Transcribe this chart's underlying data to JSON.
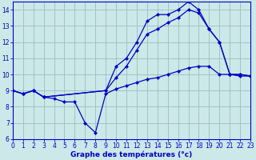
{
  "xlabel": "Graphe des températures (°c)",
  "xlim": [
    0,
    23
  ],
  "ylim": [
    6,
    14.5
  ],
  "yticks": [
    6,
    7,
    8,
    9,
    10,
    11,
    12,
    13,
    14
  ],
  "xticks": [
    0,
    1,
    2,
    3,
    4,
    5,
    6,
    7,
    8,
    9,
    10,
    11,
    12,
    13,
    14,
    15,
    16,
    17,
    18,
    19,
    20,
    21,
    22,
    23
  ],
  "bg_color": "#cce8e8",
  "line_color": "#0000cc",
  "grid_color": "#9bbfbf",
  "curve1_x": [
    0,
    1,
    2,
    3,
    4,
    5,
    6,
    7,
    8,
    9,
    10,
    11,
    12,
    13,
    14,
    15,
    16,
    17,
    18,
    19,
    20,
    21,
    22,
    23
  ],
  "curve1_y": [
    9.0,
    8.8,
    9.0,
    8.6,
    8.5,
    8.3,
    8.3,
    7.0,
    6.4,
    8.8,
    9.1,
    9.3,
    9.5,
    9.7,
    9.8,
    10.0,
    10.2,
    10.4,
    10.5,
    10.5,
    10.0,
    10.0,
    9.9,
    9.9
  ],
  "curve2_x": [
    0,
    1,
    2,
    3,
    9,
    10,
    11,
    12,
    13,
    14,
    15,
    16,
    17,
    18,
    19,
    20,
    21,
    22,
    23
  ],
  "curve2_y": [
    9.0,
    8.8,
    9.0,
    8.6,
    9.0,
    10.5,
    11.0,
    12.0,
    13.3,
    13.7,
    13.7,
    14.0,
    14.5,
    14.0,
    12.8,
    12.0,
    10.0,
    10.0,
    9.9
  ],
  "curve3_x": [
    0,
    1,
    2,
    3,
    9,
    10,
    11,
    12,
    13,
    14,
    15,
    16,
    17,
    18,
    19,
    20,
    21,
    22,
    23
  ],
  "curve3_y": [
    9.0,
    8.8,
    9.0,
    8.6,
    9.0,
    9.8,
    10.5,
    11.5,
    12.5,
    12.8,
    13.2,
    13.5,
    14.0,
    13.8,
    12.8,
    12.0,
    10.0,
    10.0,
    9.9
  ],
  "xlabel_color": "#0000cc",
  "xlabel_fontsize": 6.5,
  "tick_fontsize": 5.5,
  "tick_color": "#0000cc"
}
